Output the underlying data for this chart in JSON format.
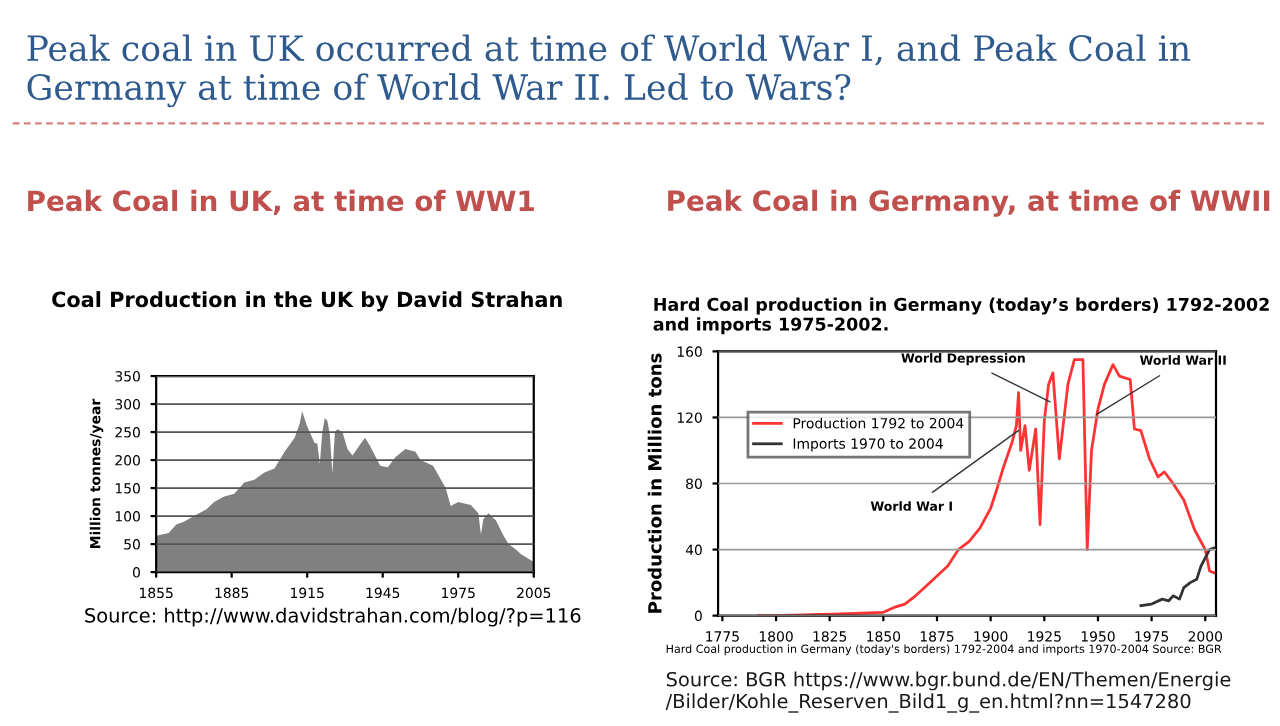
{
  "chart_data": [
    {
      "type": "area",
      "title": "Coal Production in the UK by David Strahan",
      "subtitle": "Peak Coal in UK, at time of WW1",
      "ylabel": "Million tonnes/year",
      "annotations": [
        "Peak coal in UK occurred at time of World War I, and Peak Coal in Germany at time of World War II. Led to Wars?",
        "Source: http://www.davidstrahan.com/blog/?p=116"
      ],
      "x": [
        1855,
        1860,
        1863,
        1866,
        1870,
        1875,
        1878,
        1882,
        1886,
        1890,
        1894,
        1898,
        1902,
        1906,
        1910,
        1912,
        1913,
        1915,
        1918,
        1919,
        1920,
        1921,
        1922,
        1923,
        1924,
        1925,
        1926,
        1927,
        1929,
        1931,
        1933,
        1936,
        1938,
        1940,
        1944,
        1947,
        1950,
        1954,
        1958,
        1960,
        1965,
        1970,
        1972,
        1975,
        1980,
        1983,
        1984,
        1985,
        1987,
        1990,
        1993,
        1995,
        1998,
        2000,
        2005
      ],
      "series": [
        {
          "color": "#808080",
          "values": [
            65,
            70,
            85,
            90,
            100,
            112,
            125,
            135,
            140,
            160,
            165,
            178,
            185,
            215,
            240,
            265,
            287,
            260,
            230,
            230,
            193,
            250,
            275,
            270,
            245,
            176,
            250,
            255,
            250,
            220,
            208,
            228,
            240,
            225,
            190,
            187,
            205,
            220,
            215,
            200,
            190,
            150,
            118,
            125,
            120,
            105,
            67,
            95,
            105,
            92,
            65,
            50,
            40,
            32,
            18
          ]
        }
      ],
      "xlim": [
        1855,
        2005
      ],
      "xticks": [
        1855,
        1885,
        1915,
        1945,
        1975,
        2005
      ],
      "ylim": [
        0,
        350
      ],
      "yticks": [
        0,
        50,
        100,
        150,
        200,
        250,
        300,
        350
      ],
      "grid": "y",
      "legend": false
    },
    {
      "type": "line",
      "title": "Hard Coal production in Germany (today’s borders) 1792-2002 and imports 1975-2002.",
      "subtitle": "Peak Coal in Germany, at time of WWII",
      "ylabel": "Production in Million tons",
      "annotations": [
        {
          "text": "World Depression",
          "x": 1930,
          "y": 128
        },
        {
          "text": "World War II",
          "x": 1947,
          "y": 120
        },
        {
          "text": "World War I",
          "x": 1915,
          "y": 114
        },
        "Hard Coal production in Germany (today's borders) 1792-2004 and imports 1970-2004 Source: BGR",
        "Source: BGR https://www.bgr.bund.de/EN/Themen/Energie/Bilder/Kohle_Reserven_Bild1_g_en.html?nn=1547280"
      ],
      "series": [
        {
          "name": "Production 1792 to 2004",
          "color": "#ff3333",
          "x": [
            1792,
            1800,
            1830,
            1850,
            1855,
            1860,
            1865,
            1870,
            1875,
            1880,
            1885,
            1890,
            1895,
            1900,
            1903,
            1906,
            1910,
            1912,
            1913,
            1914,
            1916,
            1918,
            1921,
            1923,
            1925,
            1927,
            1929,
            1932,
            1936,
            1939,
            1943,
            1945,
            1947,
            1950,
            1953,
            1957,
            1960,
            1965,
            1967,
            1970,
            1974,
            1978,
            1981,
            1985,
            1990,
            1995,
            2000,
            2002,
            2004
          ],
          "values": [
            0,
            0,
            1,
            2,
            5,
            7,
            12,
            18,
            24,
            30,
            40,
            45,
            53,
            65,
            77,
            90,
            105,
            115,
            135,
            100,
            115,
            88,
            113,
            55,
            118,
            140,
            147,
            95,
            140,
            155,
            155,
            40,
            100,
            125,
            140,
            152,
            145,
            143,
            113,
            112,
            95,
            84,
            87,
            80,
            70,
            52,
            40,
            27,
            26
          ]
        },
        {
          "name": "Imports 1970 to 2004",
          "color": "#333333",
          "x": [
            1970,
            1975,
            1980,
            1983,
            1985,
            1988,
            1990,
            1993,
            1996,
            1998,
            2000,
            2002,
            2004
          ],
          "values": [
            6,
            7,
            10,
            9,
            12,
            10,
            17,
            20,
            22,
            30,
            35,
            40,
            41
          ]
        }
      ],
      "xlim": [
        1773,
        2005
      ],
      "xticks": [
        1775,
        1800,
        1825,
        1850,
        1875,
        1900,
        1925,
        1950,
        1975,
        2000
      ],
      "ylim": [
        0,
        160
      ],
      "yticks": [
        0,
        40,
        80,
        120,
        160
      ],
      "grid": "y",
      "legend": "top left"
    }
  ]
}
